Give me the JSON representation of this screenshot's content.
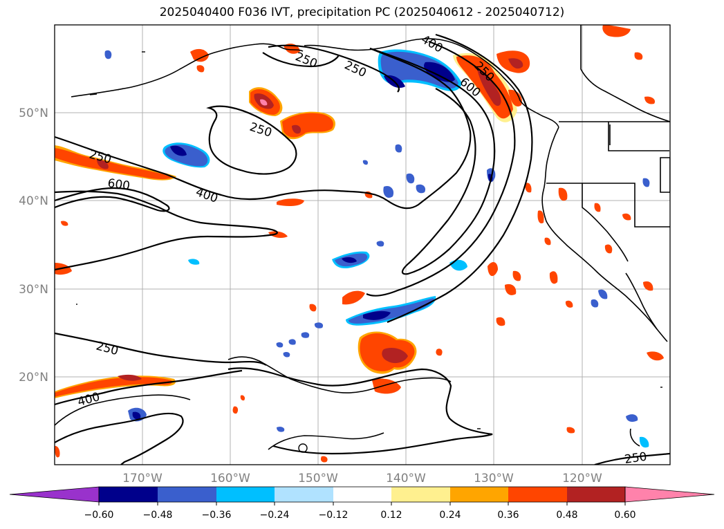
{
  "title": "2025040400 F036 IVT, precipitation PC (2025040612 - 2025040712)",
  "map": {
    "lat_ticks": [
      "50°N",
      "40°N",
      "30°N",
      "20°N"
    ],
    "lon_ticks": [
      "170°W",
      "160°W",
      "150°W",
      "140°W",
      "130°W",
      "120°W"
    ],
    "contour_labels": [
      "250",
      "250",
      "250",
      "250",
      "250",
      "250",
      "250",
      "400",
      "400",
      "400",
      "600",
      "600"
    ]
  },
  "colorbar": {
    "ticks": [
      "−0.60",
      "−0.48",
      "−0.36",
      "−0.24",
      "−0.12",
      "0.12",
      "0.24",
      "0.36",
      "0.48",
      "0.60"
    ],
    "colors": [
      "#9932cc",
      "#00008b",
      "#3a5fcd",
      "#00bfff",
      "#b0e2ff",
      "#ffffff",
      "#fff08f",
      "#ffa500",
      "#ff4500",
      "#b22222",
      "#ff82ab"
    ]
  },
  "colors": {
    "coast": "#000000",
    "grid": "#b0b0b0",
    "positive_dark": "#b22222",
    "positive_mid": "#ff4500",
    "positive_light": "#ffa500",
    "positive_pale": "#fff08f",
    "negative_dark": "#00008b",
    "negative_mid": "#3a5fcd",
    "negative_light": "#00bfff",
    "negative_pale": "#b0e2ff"
  }
}
